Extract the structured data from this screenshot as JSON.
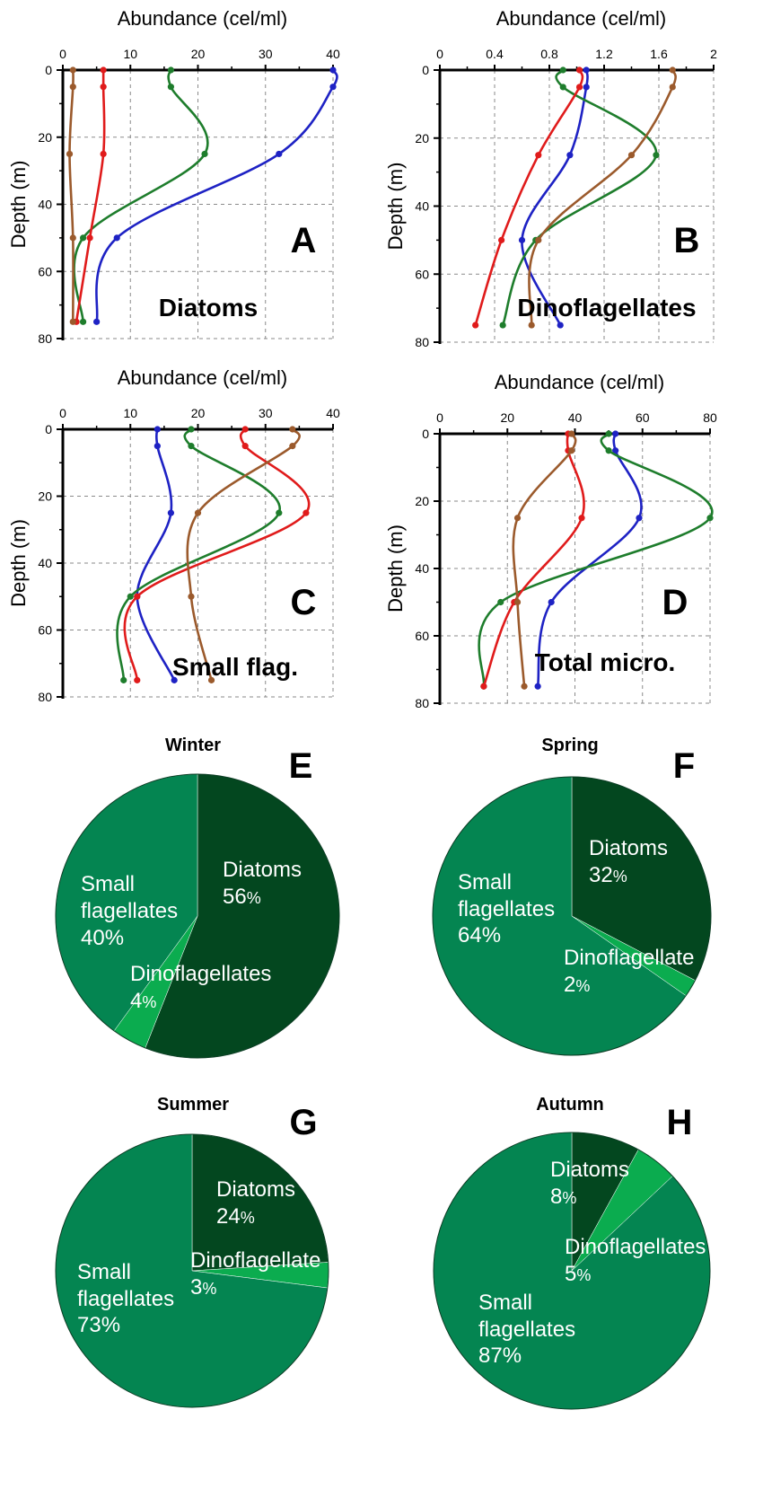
{
  "chart_data": [
    {
      "panel": "A",
      "type": "line",
      "title": "Diatoms",
      "xlabel": "Abundance (cel/ml)",
      "ylabel": "Depth (m)",
      "xlim": [
        0,
        40
      ],
      "ylim": [
        0,
        80
      ],
      "xticks": [
        "0",
        "10",
        "20",
        "30",
        "40"
      ],
      "yticks": [
        "0",
        "20",
        "40",
        "60",
        "80"
      ],
      "grid": true,
      "depths": [
        0,
        5,
        25,
        50,
        75
      ],
      "series": [
        {
          "color": "#1e22c4",
          "values": [
            40,
            40,
            32,
            8,
            5
          ]
        },
        {
          "color": "#1e7d2c",
          "values": [
            16,
            16,
            21,
            3,
            3
          ]
        },
        {
          "color": "#e01b1b",
          "values": [
            6,
            6,
            6,
            4,
            2
          ]
        },
        {
          "color": "#9b5a2c",
          "values": [
            1.5,
            1.5,
            1,
            1.5,
            1.5
          ]
        }
      ]
    },
    {
      "panel": "B",
      "type": "line",
      "title": "Dinoflagellates",
      "xlabel": "Abundance (cel/ml)",
      "ylabel": "Depth (m)",
      "xlim": [
        0,
        2
      ],
      "ylim": [
        0,
        80
      ],
      "xticks": [
        "0",
        "0.4",
        "0.8",
        "1.2",
        "1.6",
        "2"
      ],
      "yticks": [
        "0",
        "20",
        "40",
        "60",
        "80"
      ],
      "grid": true,
      "depths": [
        0,
        5,
        25,
        50,
        75
      ],
      "series": [
        {
          "color": "#1e22c4",
          "values": [
            1.07,
            1.07,
            0.95,
            0.6,
            0.88
          ]
        },
        {
          "color": "#1e7d2c",
          "values": [
            0.9,
            0.9,
            1.58,
            0.7,
            0.46
          ]
        },
        {
          "color": "#e01b1b",
          "values": [
            1.02,
            1.02,
            0.72,
            0.45,
            0.26
          ]
        },
        {
          "color": "#9b5a2c",
          "values": [
            1.7,
            1.7,
            1.4,
            0.72,
            0.67
          ]
        }
      ]
    },
    {
      "panel": "C",
      "type": "line",
      "title": "Small flag.",
      "xlabel": "Abundance (cel/ml)",
      "ylabel": "Depth (m)",
      "xlim": [
        0,
        40
      ],
      "ylim": [
        0,
        80
      ],
      "xticks": [
        "0",
        "10",
        "20",
        "30",
        "40"
      ],
      "yticks": [
        "0",
        "20",
        "40",
        "60",
        "80"
      ],
      "grid": true,
      "depths": [
        0,
        5,
        25,
        50,
        75
      ],
      "series": [
        {
          "color": "#1e22c4",
          "values": [
            14,
            14,
            16,
            11,
            16.5
          ]
        },
        {
          "color": "#1e7d2c",
          "values": [
            19,
            19,
            32,
            10,
            9
          ]
        },
        {
          "color": "#e01b1b",
          "values": [
            27,
            27,
            36,
            11,
            11
          ]
        },
        {
          "color": "#9b5a2c",
          "values": [
            34,
            34,
            20,
            19,
            22
          ]
        }
      ]
    },
    {
      "panel": "D",
      "type": "line",
      "title": "Total micro.",
      "xlabel": "Abundance (cel/ml)",
      "ylabel": "Depth (m)",
      "xlim": [
        0,
        80
      ],
      "ylim": [
        0,
        80
      ],
      "xticks": [
        "0",
        "20",
        "40",
        "60",
        "80"
      ],
      "yticks": [
        "0",
        "20",
        "40",
        "60",
        "80"
      ],
      "grid": true,
      "depths": [
        0,
        5,
        25,
        50,
        75
      ],
      "series": [
        {
          "color": "#1e22c4",
          "values": [
            52,
            52,
            59,
            33,
            29
          ]
        },
        {
          "color": "#1e7d2c",
          "values": [
            50,
            50,
            80,
            18,
            13
          ]
        },
        {
          "color": "#e01b1b",
          "values": [
            38,
            38,
            42,
            22,
            13
          ]
        },
        {
          "color": "#9b5a2c",
          "values": [
            39,
            39,
            23,
            23,
            25
          ]
        }
      ]
    },
    {
      "panel": "E",
      "type": "pie",
      "title": "Winter",
      "slices": [
        {
          "label": "Diatoms",
          "pct": 56,
          "pct_text": "56",
          "unit": "%",
          "color": "#03471f"
        },
        {
          "label": "Dinoflagellates",
          "pct": 4,
          "pct_text": "4",
          "unit": "%",
          "color": "#0bac4f"
        },
        {
          "label": "Small\nflagellates",
          "pct": 40,
          "pct_text": "40%",
          "unit": "",
          "color": "#048551"
        }
      ]
    },
    {
      "panel": "F",
      "type": "pie",
      "title": "Spring",
      "slices": [
        {
          "label": "Diatoms",
          "pct": 32,
          "pct_text": "32",
          "unit": "%",
          "color": "#03471f"
        },
        {
          "label": "Dinoflagellate",
          "pct": 2,
          "pct_text": "2",
          "unit": "%",
          "color": "#0bac4f"
        },
        {
          "label": "Small\nflagellates",
          "pct": 64,
          "pct_text": "64%",
          "unit": "",
          "color": "#048551"
        }
      ]
    },
    {
      "panel": "G",
      "type": "pie",
      "title": "Summer",
      "slices": [
        {
          "label": "Diatoms",
          "pct": 24,
          "pct_text": "24",
          "unit": "%",
          "color": "#03471f"
        },
        {
          "label": "Dinoflagellate",
          "pct": 3,
          "pct_text": "3",
          "unit": "%",
          "color": "#0bac4f"
        },
        {
          "label": "Small\nflagellates",
          "pct": 73,
          "pct_text": "73%",
          "unit": "",
          "color": "#048551"
        }
      ]
    },
    {
      "panel": "H",
      "type": "pie",
      "title": "Autumn",
      "slices": [
        {
          "label": "Diatoms",
          "pct": 8,
          "pct_text": "8",
          "unit": "%",
          "color": "#03471f"
        },
        {
          "label": "Dinoflagellates",
          "pct": 5,
          "pct_text": "5",
          "unit": "%",
          "color": "#0bac4f"
        },
        {
          "label": "Small\nflagellates",
          "pct": 87,
          "pct_text": "87%",
          "unit": "",
          "color": "#048551"
        }
      ]
    }
  ]
}
